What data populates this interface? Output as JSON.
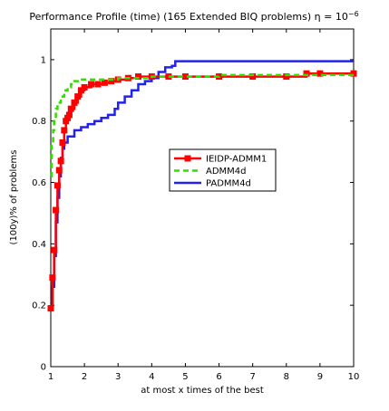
{
  "chart_data": {
    "type": "line",
    "title": "Performance Profile (time) (165 Extended BIQ problems) η = 10",
    "title_exponent": "−6",
    "xlabel": "at most x times of the best",
    "ylabel": "(100y)% of problems",
    "xlim": [
      1,
      10
    ],
    "ylim": [
      0,
      1.1
    ],
    "xticks": [
      "1",
      "2",
      "3",
      "4",
      "5",
      "6",
      "7",
      "8",
      "9",
      "10"
    ],
    "yticks": [
      "0",
      "0.2",
      "0.4",
      "0.6",
      "0.8",
      "1"
    ],
    "grid": false,
    "legend_position": "center-right",
    "series": [
      {
        "name": "IEIDP-ADMM1",
        "color": "#ff0000",
        "style": "solid-square-markers",
        "x": [
          1,
          1.05,
          1.1,
          1.15,
          1.2,
          1.25,
          1.3,
          1.35,
          1.4,
          1.45,
          1.5,
          1.55,
          1.6,
          1.7,
          1.8,
          1.9,
          2.0,
          2.2,
          2.4,
          2.6,
          2.8,
          3.0,
          3.3,
          3.6,
          4.0,
          4.5,
          5.0,
          6.0,
          7.0,
          8.0,
          8.6,
          9.0,
          10
        ],
        "y": [
          0.19,
          0.29,
          0.38,
          0.51,
          0.59,
          0.64,
          0.67,
          0.73,
          0.77,
          0.8,
          0.81,
          0.82,
          0.84,
          0.86,
          0.88,
          0.9,
          0.91,
          0.92,
          0.92,
          0.925,
          0.93,
          0.935,
          0.94,
          0.945,
          0.945,
          0.945,
          0.945,
          0.945,
          0.945,
          0.945,
          0.955,
          0.955,
          0.955
        ]
      },
      {
        "name": "ADMM4d",
        "color": "#33dd00",
        "style": "dashed",
        "x": [
          1,
          1.03,
          1.07,
          1.1,
          1.15,
          1.2,
          1.3,
          1.4,
          1.5,
          1.6,
          1.7,
          1.8,
          2.0,
          2.5,
          3.0,
          4.0,
          5.0,
          6.0,
          8.0,
          10
        ],
        "y": [
          0.62,
          0.72,
          0.77,
          0.8,
          0.84,
          0.86,
          0.88,
          0.9,
          0.91,
          0.92,
          0.93,
          0.935,
          0.935,
          0.935,
          0.94,
          0.945,
          0.945,
          0.95,
          0.95,
          0.95
        ]
      },
      {
        "name": "PADMM4d",
        "color": "#2222ee",
        "style": "solid",
        "x": [
          1,
          1.05,
          1.1,
          1.15,
          1.2,
          1.25,
          1.3,
          1.35,
          1.4,
          1.5,
          1.7,
          1.9,
          2.1,
          2.3,
          2.5,
          2.7,
          2.9,
          3.0,
          3.2,
          3.4,
          3.6,
          3.8,
          4.0,
          4.2,
          4.4,
          4.6,
          4.7,
          5.0,
          6.0,
          7.0,
          8.0,
          9.0,
          10
        ],
        "y": [
          0.19,
          0.26,
          0.36,
          0.47,
          0.55,
          0.62,
          0.68,
          0.71,
          0.73,
          0.75,
          0.77,
          0.78,
          0.79,
          0.8,
          0.81,
          0.82,
          0.84,
          0.86,
          0.88,
          0.9,
          0.92,
          0.93,
          0.94,
          0.96,
          0.975,
          0.98,
          0.995,
          0.995,
          0.995,
          0.995,
          0.995,
          0.995,
          0.995
        ]
      }
    ]
  }
}
